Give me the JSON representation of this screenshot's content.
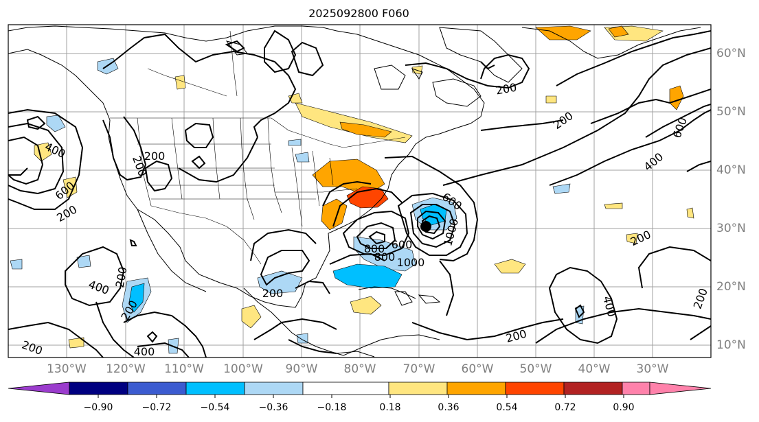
{
  "title": "2025092800 F060",
  "map": {
    "lon_labels": [
      "130°W",
      "120°W",
      "110°W",
      "100°W",
      "90°W",
      "80°W",
      "70°W",
      "60°W",
      "50°W",
      "40°W",
      "30°W"
    ],
    "lat_labels": [
      "60°N",
      "50°N",
      "40°N",
      "30°N",
      "20°N",
      "10°N"
    ],
    "contour_labels": [
      "200",
      "200",
      "200",
      "200",
      "200",
      "200",
      "200",
      "200",
      "200",
      "200",
      "200",
      "200",
      "400",
      "400",
      "400",
      "400",
      "400",
      "600",
      "600",
      "600",
      "600",
      "800",
      "800",
      "1000",
      "1000"
    ],
    "colors": {
      "land_outline": "#000000",
      "contour": "#000000",
      "grid": "#a0a0a0"
    }
  },
  "colorbar": {
    "ticks": [
      "−0.90",
      "−0.72",
      "−0.54",
      "−0.36",
      "−0.18",
      "0.18",
      "0.36",
      "0.54",
      "0.72",
      "0.90"
    ],
    "colors": [
      "#9b3ccd",
      "#000080",
      "#3b5bd0",
      "#00bfff",
      "#add8f5",
      "#ffffff",
      "#ffe680",
      "#ffa500",
      "#ff4500",
      "#b22222",
      "#ff82ab"
    ]
  }
}
